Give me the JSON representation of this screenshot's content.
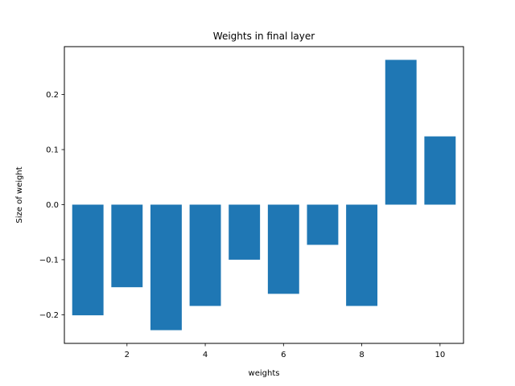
{
  "chart_data": {
    "type": "bar",
    "title": "Weights in final layer",
    "xlabel": "weights",
    "ylabel": "Size of weight",
    "x": [
      1,
      2,
      3,
      4,
      5,
      6,
      7,
      8,
      9,
      10
    ],
    "values": [
      -0.201,
      -0.15,
      -0.228,
      -0.184,
      -0.1,
      -0.162,
      -0.073,
      -0.184,
      0.263,
      0.124
    ],
    "bar_width": 0.8,
    "xlim": [
      0.4,
      10.6
    ],
    "ylim": [
      -0.252,
      0.287
    ],
    "xticks": [
      2,
      4,
      6,
      8,
      10
    ],
    "yticks": [
      -0.2,
      -0.1,
      0.0,
      0.1,
      0.2
    ],
    "ytick_labels": [
      "−0.2",
      "−0.1",
      "0.0",
      "0.1",
      "0.2"
    ],
    "bar_color": "#1f77b4",
    "grid": false,
    "legend": "none"
  }
}
